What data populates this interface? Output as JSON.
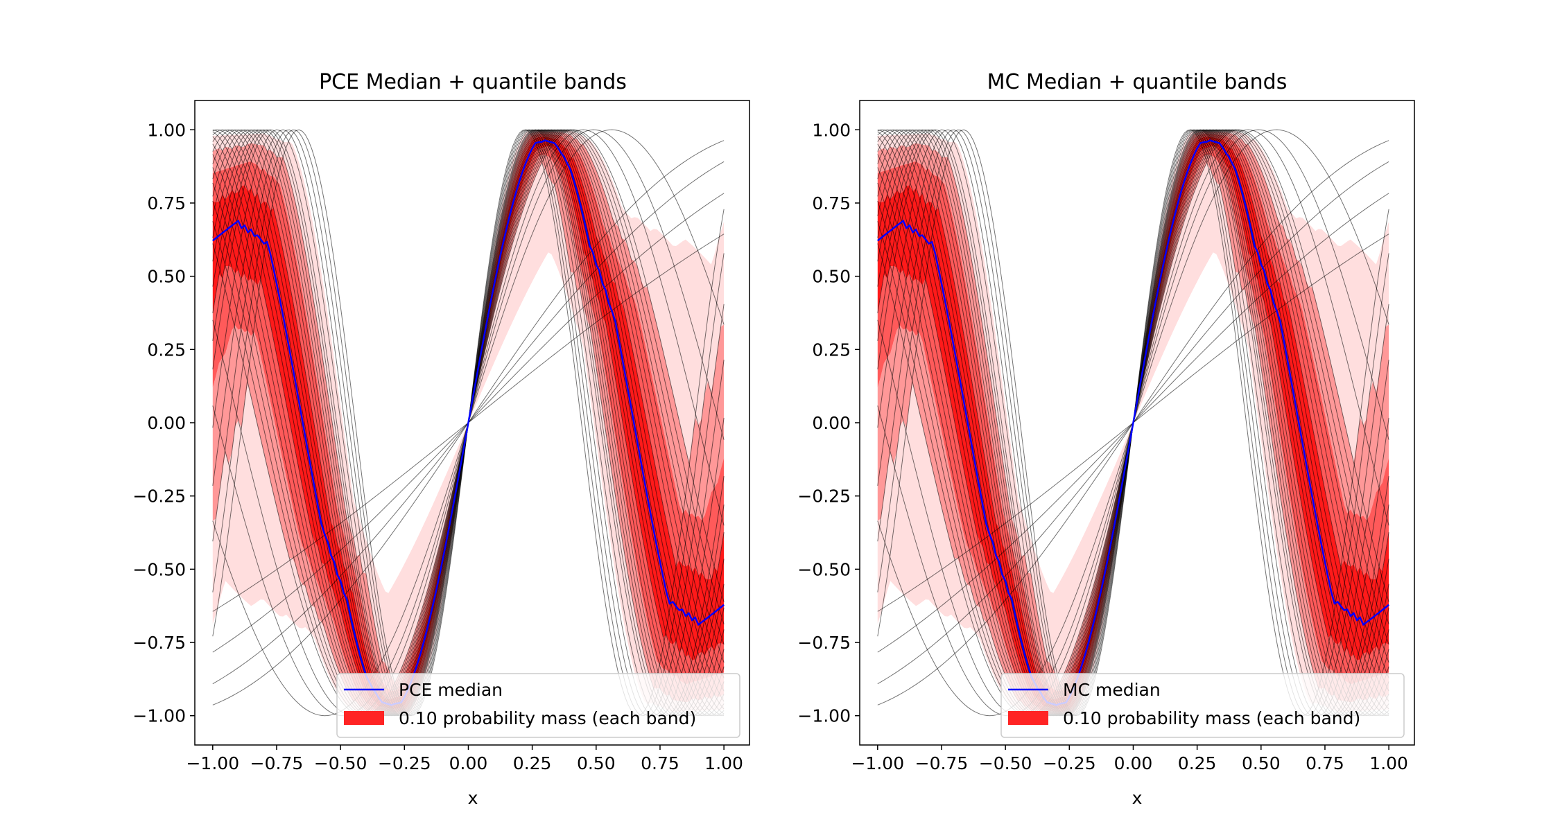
{
  "chart_data": [
    {
      "type": "line",
      "title": "PCE Median + quantile bands",
      "xlabel": "x",
      "ylabel": "",
      "xlim": [
        -1.07,
        1.1
      ],
      "ylim": [
        -1.1,
        1.1
      ],
      "xticks": [
        -1.0,
        -0.75,
        -0.5,
        -0.25,
        0.0,
        0.25,
        0.5,
        0.75,
        1.0
      ],
      "xtick_labels": [
        "−1.00",
        "−0.75",
        "−0.50",
        "−0.25",
        "0.00",
        "0.25",
        "0.50",
        "0.75",
        "1.00"
      ],
      "yticks": [
        -1.0,
        -0.75,
        -0.5,
        -0.25,
        0.0,
        0.25,
        0.5,
        0.75,
        1.0
      ],
      "ytick_labels": [
        "−1.00",
        "−0.75",
        "−0.50",
        "−0.25",
        "0.00",
        "0.25",
        "0.50",
        "0.75",
        "1.00"
      ],
      "model": "sin(k·x)",
      "sample_frequencies_k": [
        0.7,
        0.9,
        1.1,
        1.3,
        2.8,
        3.2,
        3.5,
        3.8,
        3.9,
        4.0,
        4.1,
        4.2,
        4.3,
        4.4,
        4.5,
        4.6,
        4.7,
        4.8,
        4.9,
        5.0,
        5.1,
        5.2,
        5.3,
        5.4,
        5.5,
        5.6,
        5.7,
        5.8,
        5.9,
        6.0,
        6.1,
        6.3,
        6.5,
        6.7,
        6.9,
        7.1
      ],
      "median_frequency_k": 4.3,
      "band_probability_mass": 0.1,
      "band_count": 4,
      "band_colors": [
        "#ffdede",
        "#ff9898",
        "#ff5a5a",
        "#ff1a1a"
      ],
      "median_color": "#0000ff",
      "sample_line_color": "#000000",
      "legend_position": "lower right",
      "legend": [
        {
          "label": "PCE median",
          "kind": "line",
          "color": "#0000ff"
        },
        {
          "label": "0.10 probability mass (each band)",
          "kind": "patch",
          "color": "#ff2424"
        }
      ]
    },
    {
      "type": "line",
      "title": "MC Median + quantile bands",
      "xlabel": "x",
      "ylabel": "",
      "xlim": [
        -1.07,
        1.1
      ],
      "ylim": [
        -1.1,
        1.1
      ],
      "xticks": [
        -1.0,
        -0.75,
        -0.5,
        -0.25,
        0.0,
        0.25,
        0.5,
        0.75,
        1.0
      ],
      "xtick_labels": [
        "−1.00",
        "−0.75",
        "−0.50",
        "−0.25",
        "0.00",
        "0.25",
        "0.50",
        "0.75",
        "1.00"
      ],
      "yticks": [
        -1.0,
        -0.75,
        -0.5,
        -0.25,
        0.0,
        0.25,
        0.5,
        0.75,
        1.0
      ],
      "ytick_labels": [
        "−1.00",
        "−0.75",
        "−0.50",
        "−0.25",
        "0.00",
        "0.25",
        "0.50",
        "0.75",
        "1.00"
      ],
      "model": "sin(k·x)",
      "sample_frequencies_k": [
        0.7,
        0.9,
        1.1,
        1.3,
        2.8,
        3.2,
        3.5,
        3.8,
        3.9,
        4.0,
        4.1,
        4.2,
        4.3,
        4.4,
        4.5,
        4.6,
        4.7,
        4.8,
        4.9,
        5.0,
        5.1,
        5.2,
        5.3,
        5.4,
        5.5,
        5.6,
        5.7,
        5.8,
        5.9,
        6.0,
        6.1,
        6.3,
        6.5,
        6.7,
        6.9,
        7.1
      ],
      "median_frequency_k": 4.3,
      "band_probability_mass": 0.1,
      "band_count": 4,
      "band_colors": [
        "#ffdede",
        "#ff9898",
        "#ff5a5a",
        "#ff1a1a"
      ],
      "median_color": "#0000ff",
      "sample_line_color": "#000000",
      "legend_position": "lower right",
      "legend": [
        {
          "label": "MC median",
          "kind": "line",
          "color": "#0000ff"
        },
        {
          "label": "0.10 probability mass (each band)",
          "kind": "patch",
          "color": "#ff2424"
        }
      ]
    }
  ]
}
